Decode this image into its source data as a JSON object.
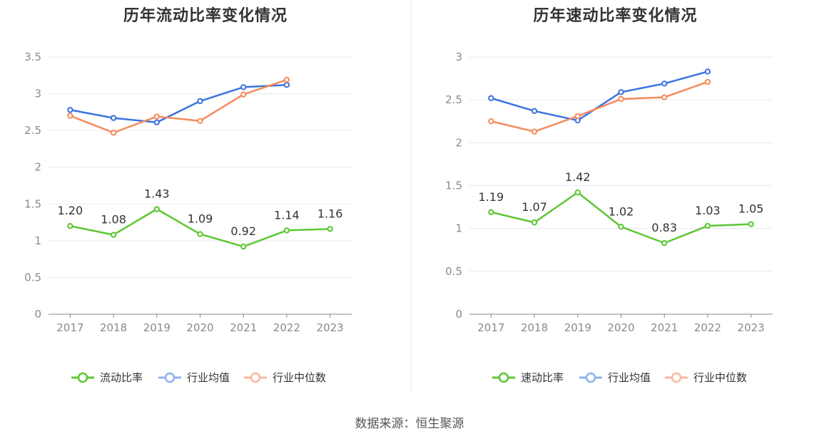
{
  "source": "数据来源：恒生聚源",
  "colors": {
    "main": "#5cc734",
    "avg": "#3d73e0",
    "median": "#f58a5c"
  },
  "chart_data": [
    {
      "type": "line",
      "title": "历年流动比率变化情况",
      "categories": [
        "2017",
        "2018",
        "2019",
        "2020",
        "2021",
        "2022",
        "2023"
      ],
      "ylim": [
        0,
        3.5
      ],
      "yticks": [
        "0",
        "0.5",
        "1",
        "1.5",
        "2",
        "2.5",
        "3",
        "3.5"
      ],
      "grid": true,
      "legend_position": "bottom",
      "series": [
        {
          "name": "流动比率",
          "values": [
            1.2,
            1.08,
            1.43,
            1.09,
            0.92,
            1.14,
            1.16
          ],
          "labels": [
            "1.20",
            "1.08",
            "1.43",
            "1.09",
            "0.92",
            "1.14",
            "1.16"
          ]
        },
        {
          "name": "行业均值",
          "values": [
            2.78,
            2.67,
            2.61,
            2.9,
            3.09,
            3.12,
            null
          ]
        },
        {
          "name": "行业中位数",
          "values": [
            2.7,
            2.47,
            2.69,
            2.63,
            2.99,
            3.19,
            null
          ]
        }
      ]
    },
    {
      "type": "line",
      "title": "历年速动比率变化情况",
      "categories": [
        "2017",
        "2018",
        "2019",
        "2020",
        "2021",
        "2022",
        "2023"
      ],
      "ylim": [
        0,
        3
      ],
      "yticks": [
        "0",
        "0.5",
        "1",
        "1.5",
        "2",
        "2.5",
        "3"
      ],
      "grid": true,
      "legend_position": "bottom",
      "series": [
        {
          "name": "速动比率",
          "values": [
            1.19,
            1.07,
            1.42,
            1.02,
            0.83,
            1.03,
            1.05
          ],
          "labels": [
            "1.19",
            "1.07",
            "1.42",
            "1.02",
            "0.83",
            "1.03",
            "1.05"
          ]
        },
        {
          "name": "行业均值",
          "values": [
            2.52,
            2.37,
            2.26,
            2.59,
            2.69,
            2.83,
            null
          ]
        },
        {
          "name": "行业中位数",
          "values": [
            2.25,
            2.13,
            2.31,
            2.51,
            2.53,
            2.71,
            null
          ]
        }
      ]
    }
  ]
}
